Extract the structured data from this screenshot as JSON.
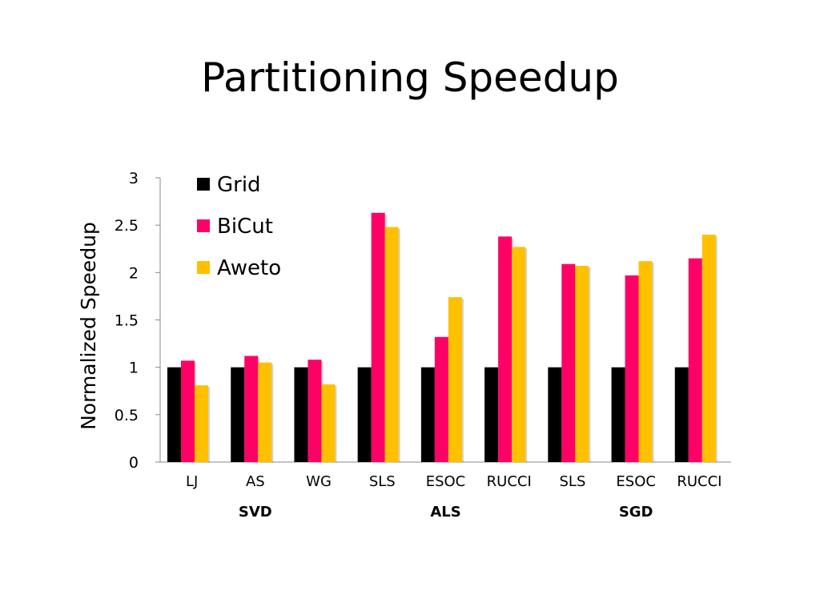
{
  "slide": {
    "title": "Partitioning Speedup"
  },
  "chart_data": {
    "type": "bar",
    "ylabel": "Normalized Speedup",
    "xlabel": "",
    "ylim": [
      0,
      3
    ],
    "yticks": [
      "0",
      "0.5",
      "1",
      "1.5",
      "2",
      "2.5",
      "3"
    ],
    "categories": [
      "LJ",
      "AS",
      "WG",
      "SLS",
      "ESOC",
      "RUCCI",
      "SLS",
      "ESOC",
      "RUCCI"
    ],
    "groups": [
      {
        "label": "SVD",
        "span": [
          0,
          2
        ]
      },
      {
        "label": "ALS",
        "span": [
          3,
          5
        ]
      },
      {
        "label": "SGD",
        "span": [
          6,
          8
        ]
      }
    ],
    "series": [
      {
        "name": "Grid",
        "color": "#000000",
        "values": [
          1,
          1,
          1,
          1,
          1,
          1,
          1,
          1,
          1
        ]
      },
      {
        "name": "BiCut",
        "color": "#ff0066",
        "values": [
          1.07,
          1.12,
          1.08,
          2.63,
          1.32,
          2.38,
          2.09,
          1.97,
          2.15
        ]
      },
      {
        "name": "Aweto",
        "color": "#ffc000",
        "values": [
          0.81,
          1.05,
          0.82,
          2.48,
          1.74,
          2.27,
          2.07,
          2.12,
          2.4
        ]
      }
    ],
    "legend": "top-left",
    "grid": false
  }
}
